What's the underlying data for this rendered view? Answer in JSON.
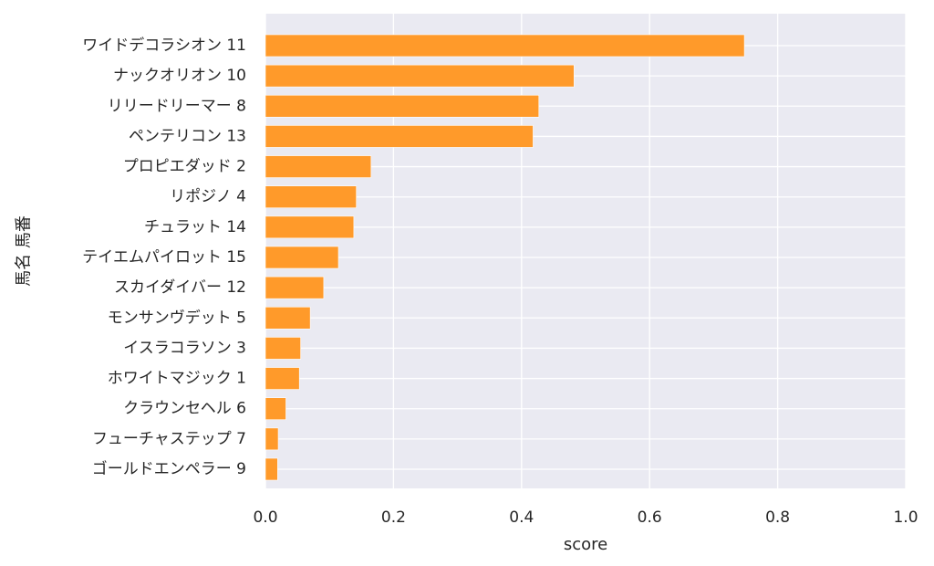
{
  "chart_data": {
    "type": "bar",
    "orientation": "horizontal",
    "xlabel": "score",
    "ylabel": "馬名 馬番",
    "xlim": [
      0.0,
      1.0
    ],
    "xticks": [
      "0.0",
      "0.2",
      "0.4",
      "0.6",
      "0.8",
      "1.0"
    ],
    "grid": true,
    "categories": [
      "ワイドデコラシオン 11",
      "ナックオリオン 10",
      "リリードリーマー 8",
      "ペンテリコン 13",
      "プロピエダッド 2",
      "リポジノ 4",
      "チュラット 14",
      "テイエムパイロット 15",
      "スカイダイバー 12",
      "モンサンヴデット 5",
      "イスラコラソン 3",
      "ホワイトマジック 1",
      "クラウンセヘル 6",
      "フューチャステップ 7",
      "ゴールドエンペラー 9"
    ],
    "values": [
      0.748,
      0.482,
      0.427,
      0.418,
      0.165,
      0.142,
      0.138,
      0.114,
      0.091,
      0.07,
      0.055,
      0.053,
      0.032,
      0.02,
      0.019
    ],
    "colors": {
      "bar": "#ff9a2a",
      "plot_bg": "#eaeaf2",
      "grid": "#ffffff",
      "text": "#262626"
    }
  }
}
